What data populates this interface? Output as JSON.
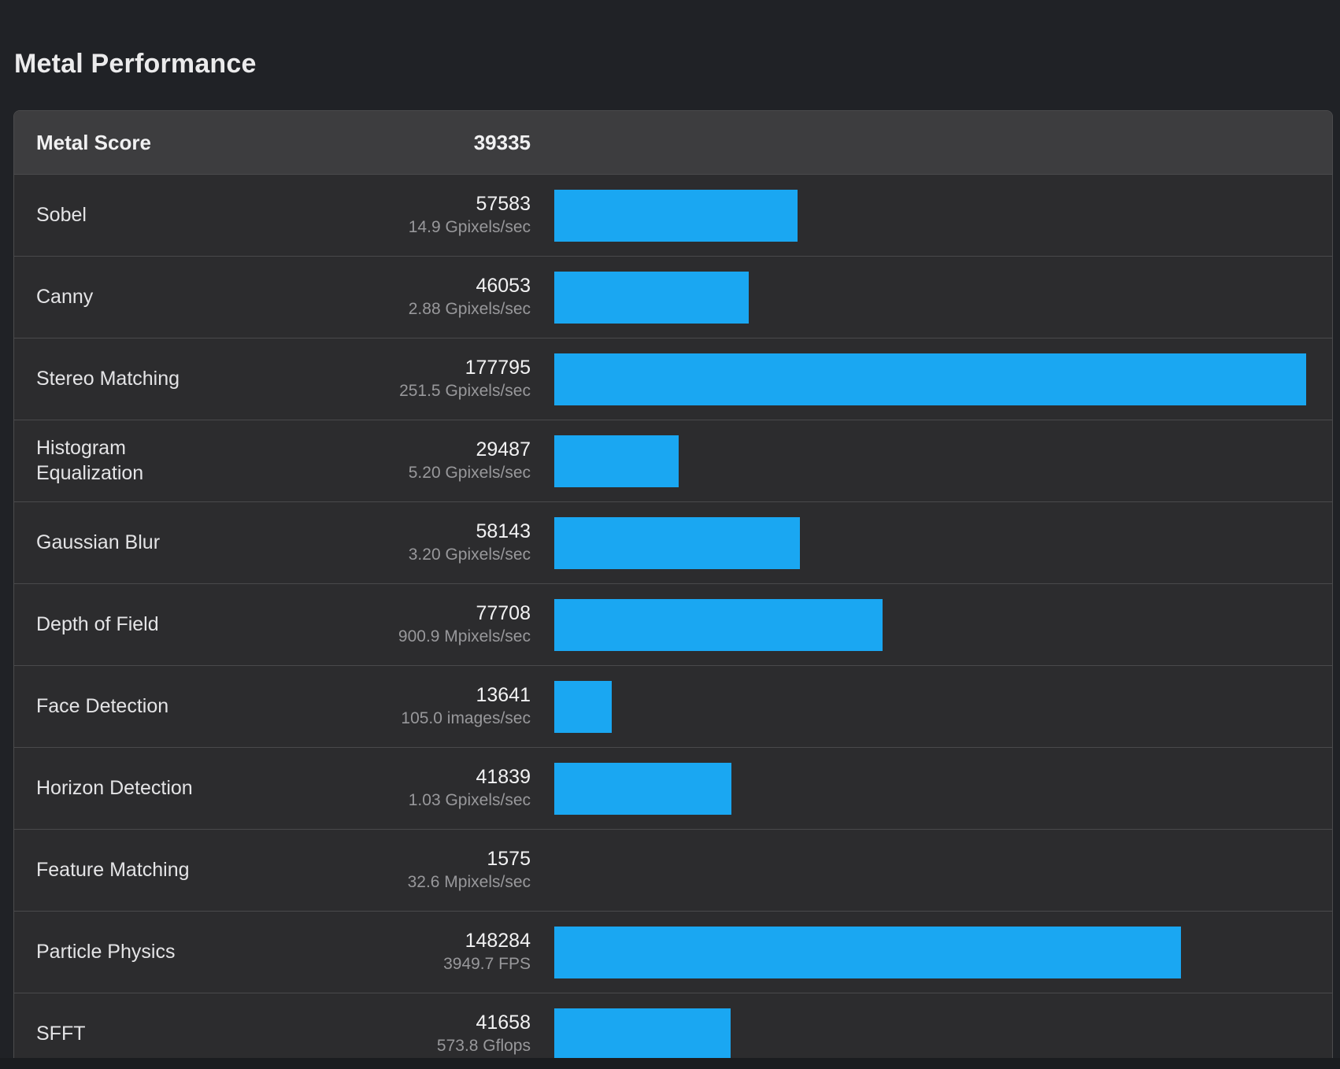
{
  "page": {
    "title": "Metal Performance"
  },
  "table": {
    "header": {
      "label": "Metal Score",
      "score": "39335"
    },
    "bar_color": "#1aa7f2",
    "max_score": 177795,
    "rows": [
      {
        "name": "Sobel",
        "score": "57583",
        "score_num": 57583,
        "rate": "14.9 Gpixels/sec",
        "show_bar": true
      },
      {
        "name": "Canny",
        "score": "46053",
        "score_num": 46053,
        "rate": "2.88 Gpixels/sec",
        "show_bar": true
      },
      {
        "name": "Stereo Matching",
        "score": "177795",
        "score_num": 177795,
        "rate": "251.5 Gpixels/sec",
        "show_bar": true
      },
      {
        "name": "Histogram Equalization",
        "score": "29487",
        "score_num": 29487,
        "rate": "5.20 Gpixels/sec",
        "show_bar": true
      },
      {
        "name": "Gaussian Blur",
        "score": "58143",
        "score_num": 58143,
        "rate": "3.20 Gpixels/sec",
        "show_bar": true
      },
      {
        "name": "Depth of Field",
        "score": "77708",
        "score_num": 77708,
        "rate": "900.9 Mpixels/sec",
        "show_bar": true
      },
      {
        "name": "Face Detection",
        "score": "13641",
        "score_num": 13641,
        "rate": "105.0 images/sec",
        "show_bar": true
      },
      {
        "name": "Horizon Detection",
        "score": "41839",
        "score_num": 41839,
        "rate": "1.03 Gpixels/sec",
        "show_bar": true
      },
      {
        "name": "Feature Matching",
        "score": "1575",
        "score_num": 1575,
        "rate": "32.6 Mpixels/sec",
        "show_bar": false
      },
      {
        "name": "Particle Physics",
        "score": "148284",
        "score_num": 148284,
        "rate": "3949.7 FPS",
        "show_bar": true
      },
      {
        "name": "SFFT",
        "score": "41658",
        "score_num": 41658,
        "rate": "573.8 Gflops",
        "show_bar": true
      }
    ]
  }
}
